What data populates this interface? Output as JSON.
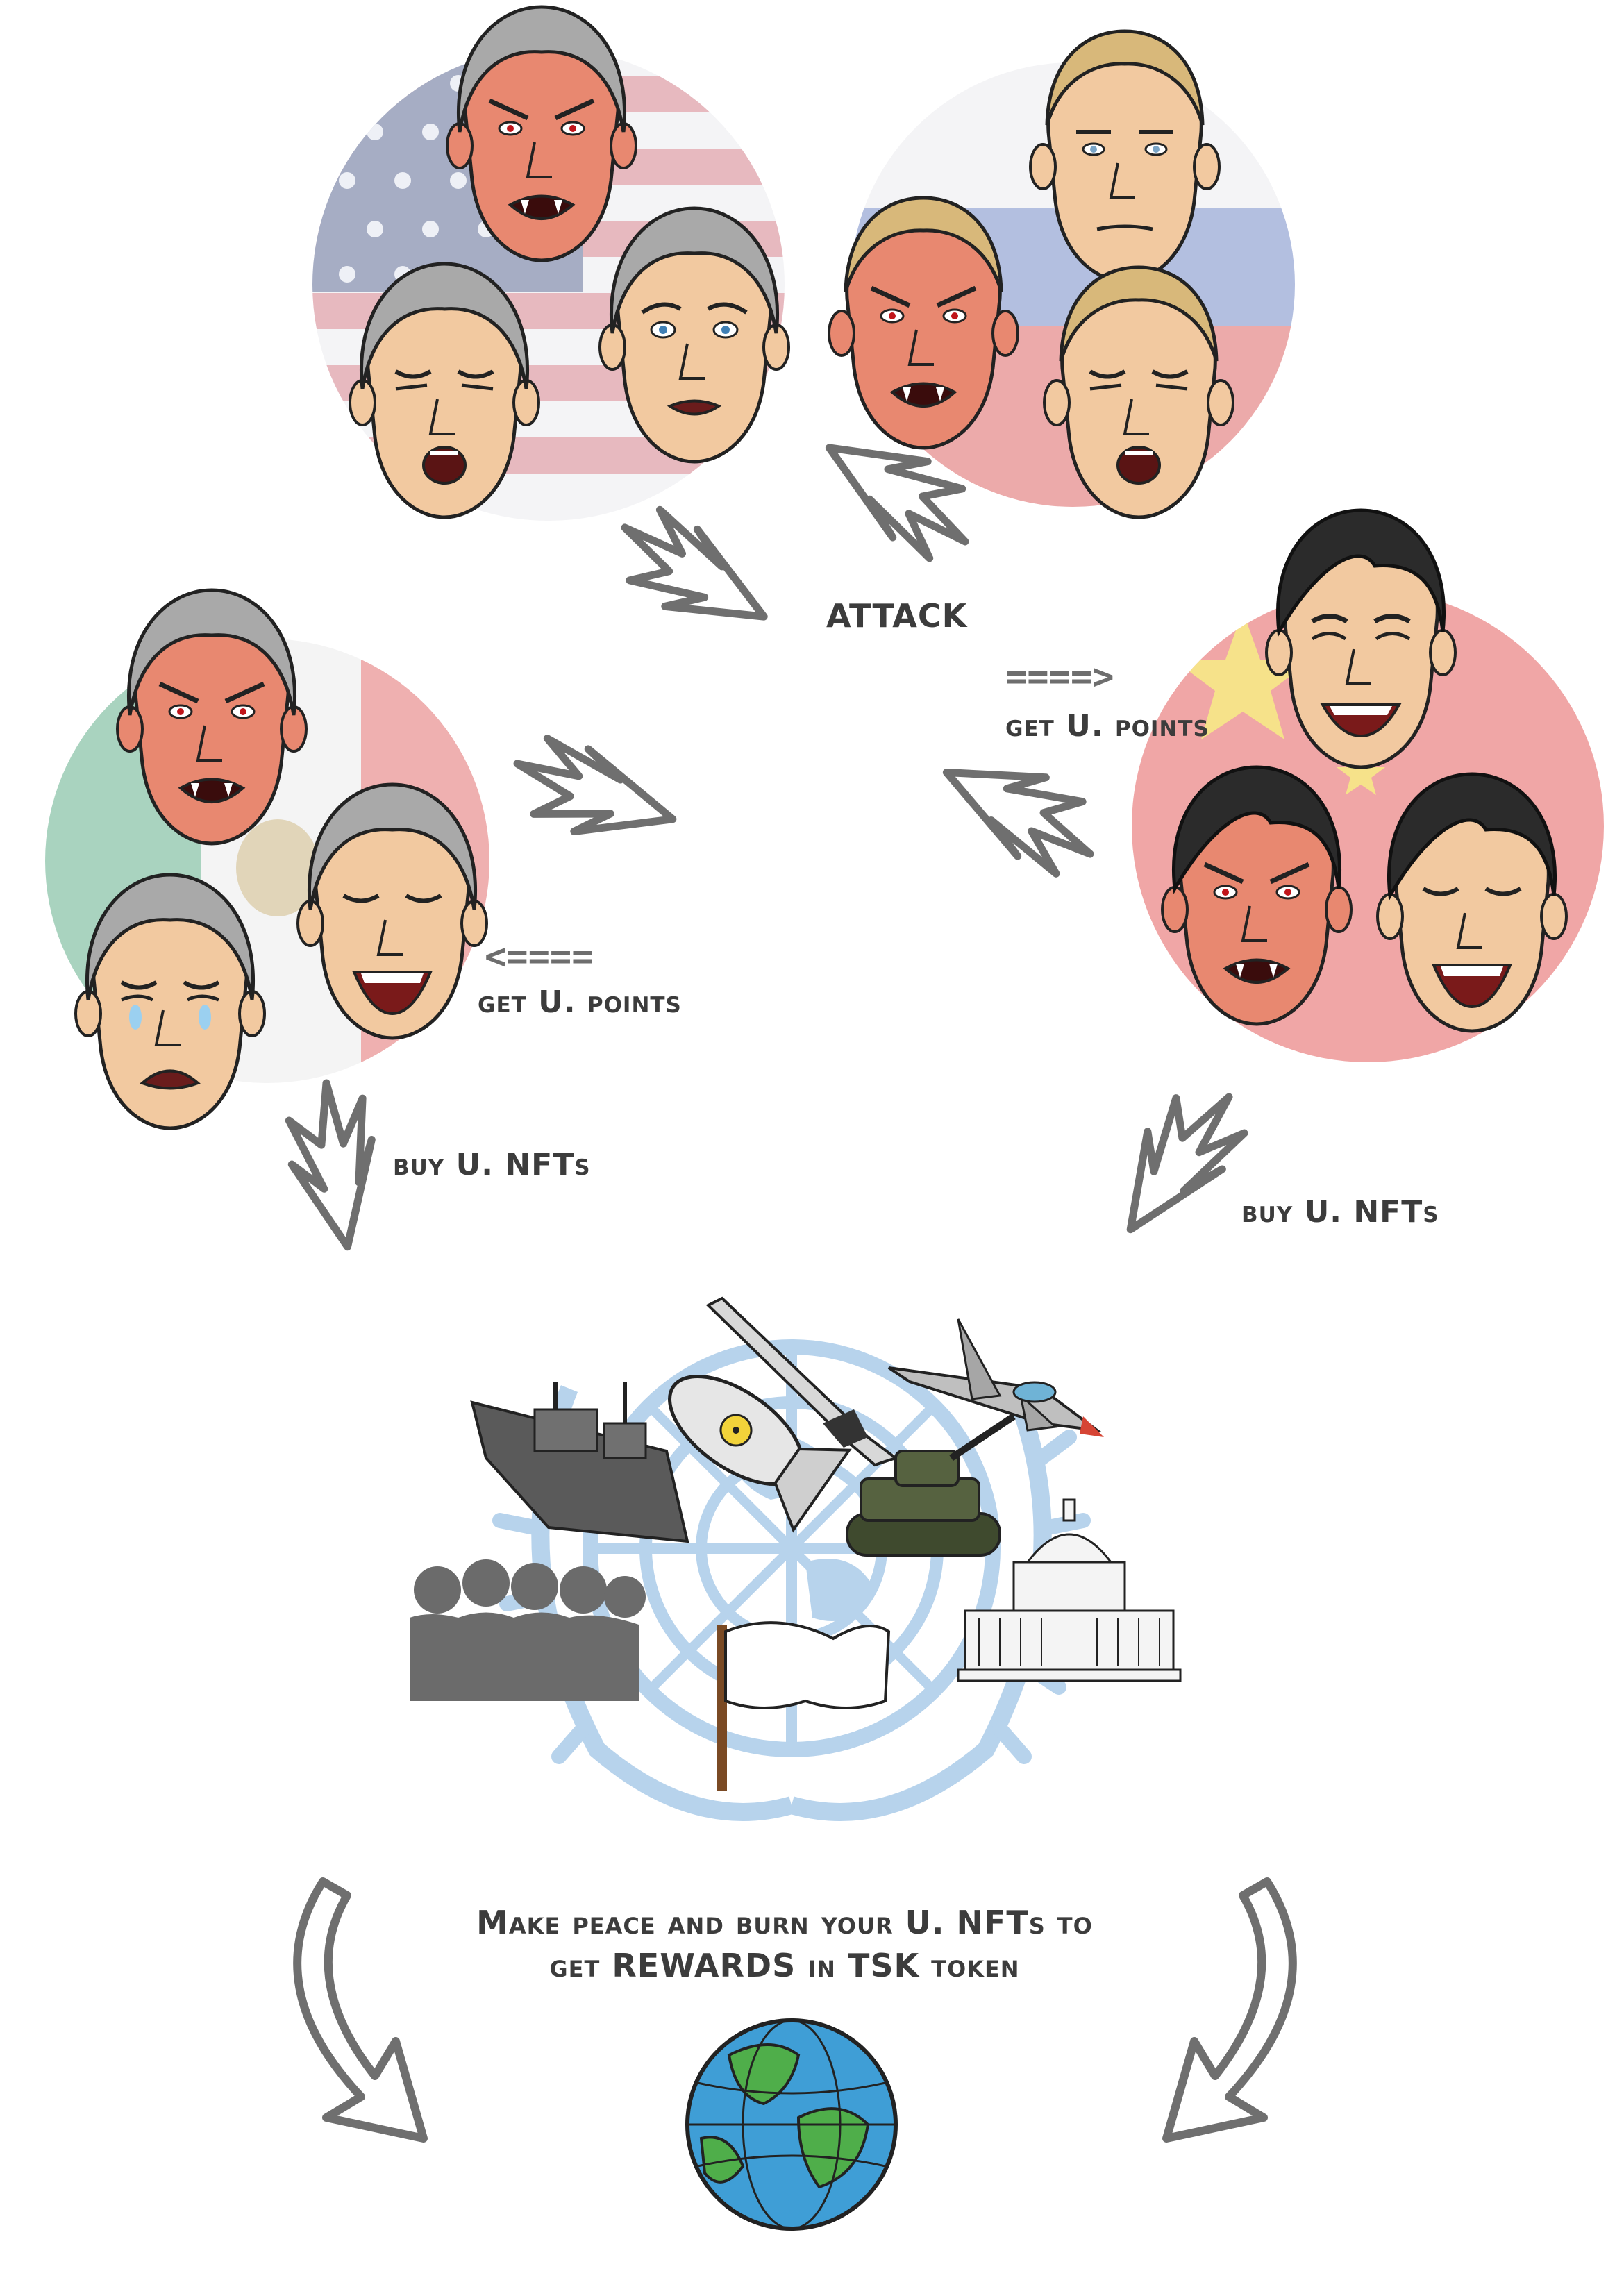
{
  "labels": {
    "attack": "ATTACK",
    "get_points_right": "get U. points",
    "get_points_left": "get U. points",
    "buy_left": "buy U. NFTs",
    "buy_right": "buy U. NFTs",
    "final_line1": "Make peace and burn your U. NFTs to",
    "final_line2": "get REWARDS in TSK token"
  },
  "arrow_glyphs": {
    "right": "====>",
    "left": "<===="
  },
  "groups": [
    {
      "flag": "usa",
      "faces": [
        "angry",
        "wincing",
        "worried"
      ]
    },
    {
      "flag": "russia",
      "faces": [
        "angry",
        "neutral",
        "wincing"
      ]
    },
    {
      "flag": "mexico",
      "faces": [
        "angry",
        "laughing",
        "crying"
      ]
    },
    {
      "flag": "china",
      "faces": [
        "smiling",
        "angry",
        "laughing"
      ]
    }
  ],
  "center_items": [
    "un-emblem",
    "warship",
    "nuclear-bomb",
    "missile",
    "fighter-jet",
    "tank",
    "crowd-silhouette",
    "white-flag",
    "capitol-building"
  ],
  "colors": {
    "arrow": "#6f6f6f",
    "text": "#3c3c3c",
    "un_blue": "#b7d3ec",
    "skin": "#f2c9a0",
    "red_skin": "#e88870",
    "hair_grey": "#a9a9a9",
    "hair_dark": "#2b2b2b",
    "hair_blond": "#d8b87a"
  }
}
